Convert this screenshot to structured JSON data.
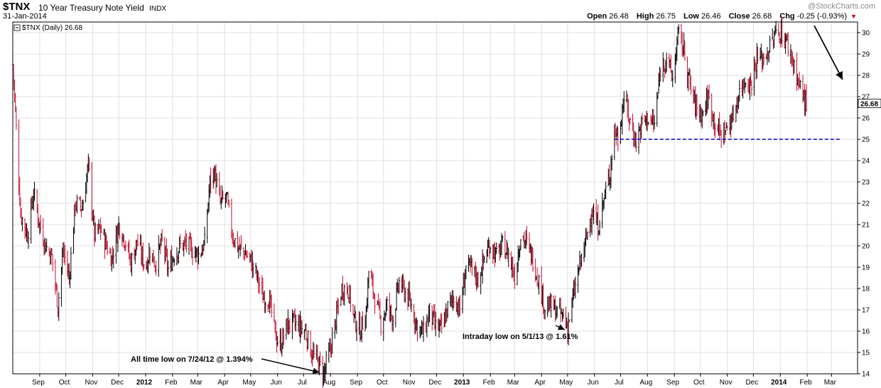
{
  "header": {
    "symbol": "$TNX",
    "description": "10 Year Treasury Note Yield",
    "exchange": "INDX",
    "date": "31-Jan-2014",
    "open_label": "Open",
    "open": "26.48",
    "high_label": "High",
    "high": "26.75",
    "low_label": "Low",
    "low": "26.46",
    "close_label": "Close",
    "close": "26.68",
    "chg_label": "Chg",
    "chg": "-0.25 (-0.93%)",
    "brand": "@StockCharts.com"
  },
  "legend": {
    "text": "$TNX (Daily) 26.68"
  },
  "last_value_label": "26.68",
  "annotations": {
    "atl": "All time low on 7/24/12 @ 1.394%",
    "intraday": "Intraday low on 5/1/13 @ 1.61%"
  },
  "colors": {
    "up": "#000000",
    "down": "#c8102e",
    "support": "#0000cc",
    "grid": "#e0e0e0",
    "frame": "#000000"
  },
  "chart_data": {
    "type": "line",
    "style": "OHLC bars (daily)",
    "title": "$TNX 10 Year Treasury Note Yield INDX",
    "x_range": [
      "2011-08-01",
      "2014-03-31"
    ],
    "ylim": [
      14,
      30.5
    ],
    "y_ticks": [
      14,
      15,
      16,
      17,
      18,
      19,
      20,
      21,
      22,
      23,
      24,
      25,
      26,
      27,
      28,
      29,
      30
    ],
    "x_ticks": [
      {
        "label": "Sep",
        "date": "2011-09-01"
      },
      {
        "label": "Oct",
        "date": "2011-10-01"
      },
      {
        "label": "Nov",
        "date": "2011-11-01"
      },
      {
        "label": "Dec",
        "date": "2011-12-01"
      },
      {
        "label": "2012",
        "date": "2012-01-01",
        "bold": true
      },
      {
        "label": "Feb",
        "date": "2012-02-01"
      },
      {
        "label": "Mar",
        "date": "2012-03-01"
      },
      {
        "label": "Apr",
        "date": "2012-04-01"
      },
      {
        "label": "May",
        "date": "2012-05-01"
      },
      {
        "label": "Jun",
        "date": "2012-06-01"
      },
      {
        "label": "Jul",
        "date": "2012-07-01"
      },
      {
        "label": "Aug",
        "date": "2012-08-01"
      },
      {
        "label": "Sep",
        "date": "2012-09-01"
      },
      {
        "label": "Oct",
        "date": "2012-10-01"
      },
      {
        "label": "Nov",
        "date": "2012-11-01"
      },
      {
        "label": "Dec",
        "date": "2012-12-01"
      },
      {
        "label": "2013",
        "date": "2013-01-01",
        "bold": true
      },
      {
        "label": "Feb",
        "date": "2013-02-01"
      },
      {
        "label": "Mar",
        "date": "2013-03-01"
      },
      {
        "label": "Apr",
        "date": "2013-04-01"
      },
      {
        "label": "May",
        "date": "2013-05-01"
      },
      {
        "label": "Jun",
        "date": "2013-06-01"
      },
      {
        "label": "Jul",
        "date": "2013-07-01"
      },
      {
        "label": "Aug",
        "date": "2013-08-01"
      },
      {
        "label": "Sep",
        "date": "2013-09-01"
      },
      {
        "label": "Oct",
        "date": "2013-10-01"
      },
      {
        "label": "Nov",
        "date": "2013-11-01"
      },
      {
        "label": "Dec",
        "date": "2013-12-01"
      },
      {
        "label": "2014",
        "date": "2014-01-01",
        "bold": true
      },
      {
        "label": "Feb",
        "date": "2014-02-01"
      },
      {
        "label": "Mar",
        "date": "2014-03-01"
      }
    ],
    "series": [
      {
        "name": "$TNX (Daily)",
        "points": [
          [
            "2011-08-01",
            28.5
          ],
          [
            "2011-08-05",
            25.5
          ],
          [
            "2011-08-10",
            21.5
          ],
          [
            "2011-08-18",
            20.5
          ],
          [
            "2011-08-25",
            22.5
          ],
          [
            "2011-09-01",
            21.0
          ],
          [
            "2011-09-08",
            20.0
          ],
          [
            "2011-09-15",
            19.5
          ],
          [
            "2011-09-22",
            17.2
          ],
          [
            "2011-09-28",
            19.8
          ],
          [
            "2011-10-05",
            18.5
          ],
          [
            "2011-10-12",
            22.0
          ],
          [
            "2011-10-20",
            21.8
          ],
          [
            "2011-10-27",
            23.8
          ],
          [
            "2011-11-03",
            20.5
          ],
          [
            "2011-11-10",
            20.8
          ],
          [
            "2011-11-17",
            20.0
          ],
          [
            "2011-11-23",
            19.4
          ],
          [
            "2011-12-01",
            21.0
          ],
          [
            "2011-12-08",
            20.3
          ],
          [
            "2011-12-15",
            19.2
          ],
          [
            "2011-12-22",
            20.2
          ],
          [
            "2012-01-01",
            19.0
          ],
          [
            "2012-01-06",
            19.8
          ],
          [
            "2012-01-12",
            19.2
          ],
          [
            "2012-01-20",
            20.2
          ],
          [
            "2012-01-27",
            18.9
          ],
          [
            "2012-02-03",
            19.6
          ],
          [
            "2012-02-10",
            20.0
          ],
          [
            "2012-02-17",
            20.1
          ],
          [
            "2012-02-24",
            19.8
          ],
          [
            "2012-03-02",
            19.6
          ],
          [
            "2012-03-09",
            20.1
          ],
          [
            "2012-03-15",
            23.0
          ],
          [
            "2012-03-20",
            23.5
          ],
          [
            "2012-03-27",
            22.0
          ],
          [
            "2012-04-03",
            22.3
          ],
          [
            "2012-04-10",
            20.5
          ],
          [
            "2012-04-17",
            19.9
          ],
          [
            "2012-04-24",
            19.7
          ],
          [
            "2012-05-01",
            19.3
          ],
          [
            "2012-05-08",
            18.6
          ],
          [
            "2012-05-15",
            17.6
          ],
          [
            "2012-05-22",
            17.5
          ],
          [
            "2012-05-31",
            15.6
          ],
          [
            "2012-06-05",
            15.4
          ],
          [
            "2012-06-12",
            16.3
          ],
          [
            "2012-06-19",
            16.4
          ],
          [
            "2012-06-26",
            16.2
          ],
          [
            "2012-07-03",
            16.0
          ],
          [
            "2012-07-10",
            15.0
          ],
          [
            "2012-07-17",
            14.6
          ],
          [
            "2012-07-24",
            14.0
          ],
          [
            "2012-07-31",
            15.0
          ],
          [
            "2012-08-07",
            16.5
          ],
          [
            "2012-08-14",
            18.0
          ],
          [
            "2012-08-21",
            18.0
          ],
          [
            "2012-08-28",
            16.6
          ],
          [
            "2012-09-04",
            16.0
          ],
          [
            "2012-09-11",
            16.9
          ],
          [
            "2012-09-14",
            18.8
          ],
          [
            "2012-09-21",
            17.6
          ],
          [
            "2012-09-28",
            16.4
          ],
          [
            "2012-10-05",
            17.2
          ],
          [
            "2012-10-12",
            16.6
          ],
          [
            "2012-10-19",
            18.3
          ],
          [
            "2012-10-26",
            17.8
          ],
          [
            "2012-11-02",
            17.2
          ],
          [
            "2012-11-09",
            16.2
          ],
          [
            "2012-11-16",
            15.9
          ],
          [
            "2012-11-23",
            16.9
          ],
          [
            "2012-11-30",
            16.2
          ],
          [
            "2012-12-07",
            16.1
          ],
          [
            "2012-12-14",
            17.1
          ],
          [
            "2012-12-21",
            17.6
          ],
          [
            "2012-12-28",
            17.0
          ],
          [
            "2013-01-04",
            19.0
          ],
          [
            "2013-01-11",
            18.9
          ],
          [
            "2013-01-18",
            18.4
          ],
          [
            "2013-01-25",
            19.4
          ],
          [
            "2013-02-01",
            20.1
          ],
          [
            "2013-02-08",
            19.5
          ],
          [
            "2013-02-15",
            20.0
          ],
          [
            "2013-02-22",
            19.6
          ],
          [
            "2013-03-01",
            18.6
          ],
          [
            "2013-03-08",
            20.5
          ],
          [
            "2013-03-14",
            20.2
          ],
          [
            "2013-03-21",
            19.5
          ],
          [
            "2013-03-28",
            18.5
          ],
          [
            "2013-04-05",
            17.1
          ],
          [
            "2013-04-12",
            17.2
          ],
          [
            "2013-04-19",
            16.9
          ],
          [
            "2013-04-26",
            16.7
          ],
          [
            "2013-05-01",
            16.2
          ],
          [
            "2013-05-08",
            17.7
          ],
          [
            "2013-05-15",
            19.1
          ],
          [
            "2013-05-22",
            20.2
          ],
          [
            "2013-05-29",
            21.7
          ],
          [
            "2013-06-05",
            20.9
          ],
          [
            "2013-06-12",
            22.2
          ],
          [
            "2013-06-19",
            23.5
          ],
          [
            "2013-06-24",
            25.5
          ],
          [
            "2013-06-28",
            25.0
          ],
          [
            "2013-07-05",
            27.0
          ],
          [
            "2013-07-12",
            25.8
          ],
          [
            "2013-07-19",
            24.9
          ],
          [
            "2013-07-26",
            25.8
          ],
          [
            "2013-08-02",
            26.0
          ],
          [
            "2013-08-09",
            25.7
          ],
          [
            "2013-08-16",
            28.3
          ],
          [
            "2013-08-23",
            28.9
          ],
          [
            "2013-08-30",
            27.8
          ],
          [
            "2013-09-05",
            29.9
          ],
          [
            "2013-09-12",
            29.2
          ],
          [
            "2013-09-19",
            27.5
          ],
          [
            "2013-09-26",
            26.5
          ],
          [
            "2013-10-03",
            26.2
          ],
          [
            "2013-10-10",
            27.0
          ],
          [
            "2013-10-17",
            25.9
          ],
          [
            "2013-10-24",
            25.2
          ],
          [
            "2013-10-31",
            25.5
          ],
          [
            "2013-11-07",
            26.0
          ],
          [
            "2013-11-14",
            27.1
          ],
          [
            "2013-11-21",
            27.8
          ],
          [
            "2013-11-28",
            27.6
          ],
          [
            "2013-12-05",
            28.8
          ],
          [
            "2013-12-12",
            28.8
          ],
          [
            "2013-12-19",
            29.2
          ],
          [
            "2013-12-27",
            30.0
          ],
          [
            "2014-01-02",
            30.0
          ],
          [
            "2014-01-09",
            29.5
          ],
          [
            "2014-01-16",
            28.6
          ],
          [
            "2014-01-23",
            27.5
          ],
          [
            "2014-01-31",
            26.68
          ]
        ]
      }
    ],
    "reference_lines": [
      {
        "type": "horizontal",
        "y": 25.0,
        "from": "2013-06-24",
        "to": "2014-03-31",
        "style": "dashed"
      }
    ],
    "annotations": [
      {
        "text": "All time low on 7/24/12 @ 1.394%",
        "point": [
          "2012-07-24",
          14.0
        ]
      },
      {
        "text": "Intraday low on 5/1/13 @ 1.61%",
        "point": [
          "2013-05-01",
          16.2
        ]
      }
    ],
    "grid": true
  }
}
